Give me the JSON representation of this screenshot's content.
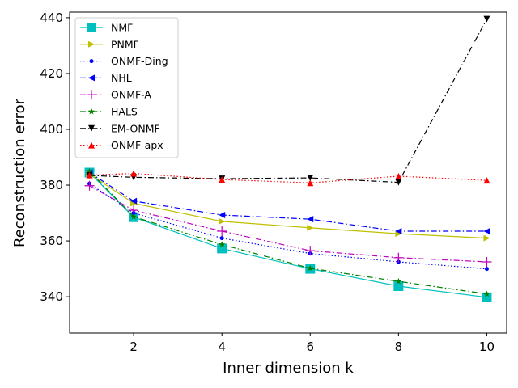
{
  "chart_data": {
    "type": "line",
    "title": "",
    "xlabel": "Inner dimension k",
    "ylabel": "Reconstruction error",
    "xlim": [
      0.55,
      10.45
    ],
    "ylim": [
      327,
      442
    ],
    "xticks": [
      2,
      4,
      6,
      8,
      10
    ],
    "yticks": [
      340,
      360,
      380,
      400,
      420,
      440
    ],
    "x": [
      1,
      2,
      4,
      6,
      8,
      10
    ],
    "grid": false,
    "legend_position": "top-left",
    "series": [
      {
        "name": "NMF",
        "color": "#00bfbf",
        "marker": "square",
        "dash": "solid",
        "values": [
          384.5,
          368.5,
          357.3,
          350.0,
          343.8,
          339.8
        ]
      },
      {
        "name": "PNMF",
        "color": "#bfbf00",
        "marker": "triangle-right",
        "dash": "solid",
        "values": [
          384.0,
          373.5,
          367.0,
          364.7,
          362.6,
          361.0
        ]
      },
      {
        "name": "ONMF-Ding",
        "color": "#0000ff",
        "marker": "dot",
        "dash": "dotted",
        "values": [
          380.5,
          370.0,
          361.0,
          355.5,
          352.5,
          350.0
        ]
      },
      {
        "name": "NHL",
        "color": "#0000ff",
        "marker": "triangle-left",
        "dash": "dashdot",
        "values": [
          384.5,
          374.3,
          369.3,
          367.8,
          363.5,
          363.5
        ]
      },
      {
        "name": "ONMF-A",
        "color": "#bf00bf",
        "marker": "plus",
        "dash": "dashdot",
        "values": [
          379.8,
          371.0,
          363.5,
          356.5,
          354.0,
          352.5
        ]
      },
      {
        "name": "HALS",
        "color": "#008000",
        "marker": "star",
        "dash": "dashdot",
        "values": [
          385.0,
          368.7,
          358.7,
          350.2,
          345.5,
          341.0
        ]
      },
      {
        "name": "EM-ONMF",
        "color": "#000000",
        "marker": "triangle-down",
        "dash": "dashdot",
        "values": [
          383.5,
          382.8,
          382.3,
          382.6,
          381.0,
          439.5
        ]
      },
      {
        "name": "ONMF-apx",
        "color": "#ff0000",
        "marker": "triangle-up",
        "dash": "dotted",
        "values": [
          383.6,
          384.2,
          382.0,
          380.8,
          383.2,
          381.7
        ]
      }
    ]
  }
}
